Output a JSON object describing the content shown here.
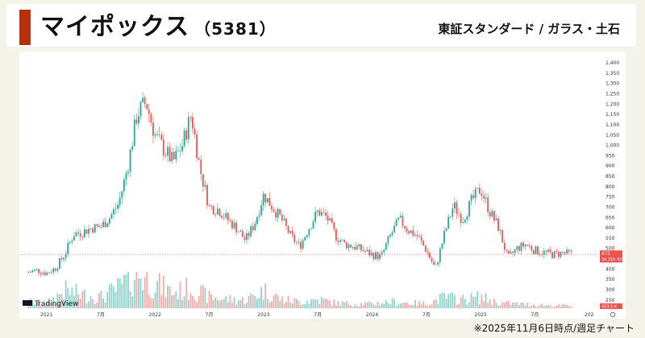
{
  "header": {
    "company_name": "マイポックス",
    "code": "（5381）",
    "market": "東証スタンダード / ガラス・土石"
  },
  "footnote": "※2025年11月6日時点/週足チャート",
  "chart_data": {
    "type": "candlestick",
    "title": "",
    "xlabel": "",
    "ylabel": "",
    "ylim": [
      210,
      1420
    ],
    "grid": false,
    "attribution": "TradingView",
    "colors": {
      "up": "#26a69a",
      "down": "#ef5350",
      "price_line": "#ef5350"
    },
    "y_ticks": [
      "1,400",
      "1,350",
      "1,300",
      "1,250",
      "1,200",
      "1,150",
      "1,100",
      "1,050",
      "1,000",
      "950",
      "900",
      "850",
      "800",
      "750",
      "700",
      "650",
      "600",
      "550",
      "500",
      "450",
      "400",
      "350",
      "300",
      "250"
    ],
    "y_tick_values": [
      1400,
      1350,
      1300,
      1250,
      1200,
      1150,
      1100,
      1050,
      1000,
      950,
      900,
      850,
      800,
      750,
      700,
      650,
      600,
      550,
      500,
      450,
      400,
      350,
      300,
      250
    ],
    "x_ticks": [
      "2021",
      "7月",
      "2022",
      "7月",
      "2023",
      "7月",
      "2024",
      "7月",
      "2025",
      "7月",
      "202"
    ],
    "x_tick_dates": [
      "2021-01",
      "2021-07",
      "2022-01",
      "2022-07",
      "2023-01",
      "2023-07",
      "2024-01",
      "2024-07",
      "2025-01",
      "2025-07",
      "2026-01"
    ],
    "x_range": [
      "2020-10",
      "2026-02"
    ],
    "last_price_label": "471",
    "countdown_label": "3d 21h 42",
    "volume_label": "453.5 K",
    "price_anchors": [
      [
        "2020-11",
        385
      ],
      [
        "2020-12",
        395
      ],
      [
        "2021-01",
        380
      ],
      [
        "2021-02",
        405
      ],
      [
        "2021-03",
        470
      ],
      [
        "2021-04",
        570
      ],
      [
        "2021-05",
        580
      ],
      [
        "2021-06",
        600
      ],
      [
        "2021-07",
        605
      ],
      [
        "2021-08",
        650
      ],
      [
        "2021-09",
        720
      ],
      [
        "2021-10",
        900
      ],
      [
        "2021-11",
        1150
      ],
      [
        "2021-12",
        1210
      ],
      [
        "2022-01",
        1050
      ],
      [
        "2022-02",
        980
      ],
      [
        "2022-03",
        920
      ],
      [
        "2022-04",
        1000
      ],
      [
        "2022-05",
        1150
      ],
      [
        "2022-06",
        880
      ],
      [
        "2022-07",
        700
      ],
      [
        "2022-08",
        690
      ],
      [
        "2022-09",
        640
      ],
      [
        "2022-10",
        600
      ],
      [
        "2022-11",
        540
      ],
      [
        "2022-12",
        620
      ],
      [
        "2023-01",
        760
      ],
      [
        "2023-02",
        700
      ],
      [
        "2023-03",
        640
      ],
      [
        "2023-04",
        560
      ],
      [
        "2023-05",
        510
      ],
      [
        "2023-06",
        600
      ],
      [
        "2023-07",
        680
      ],
      [
        "2023-08",
        650
      ],
      [
        "2023-09",
        560
      ],
      [
        "2023-10",
        520
      ],
      [
        "2023-11",
        510
      ],
      [
        "2023-12",
        490
      ],
      [
        "2024-01",
        470
      ],
      [
        "2024-02",
        460
      ],
      [
        "2024-03",
        560
      ],
      [
        "2024-04",
        640
      ],
      [
        "2024-05",
        590
      ],
      [
        "2024-06",
        560
      ],
      [
        "2024-07",
        490
      ],
      [
        "2024-08",
        400
      ],
      [
        "2024-09",
        570
      ],
      [
        "2024-10",
        710
      ],
      [
        "2024-11",
        640
      ],
      [
        "2024-12",
        730
      ],
      [
        "2025-01",
        790
      ],
      [
        "2025-02",
        680
      ],
      [
        "2025-03",
        600
      ],
      [
        "2025-04",
        450
      ],
      [
        "2025-05",
        500
      ],
      [
        "2025-06",
        520
      ],
      [
        "2025-07",
        490
      ],
      [
        "2025-08",
        480
      ],
      [
        "2025-09",
        470
      ],
      [
        "2025-10",
        478
      ],
      [
        "2025-11",
        471
      ]
    ],
    "volume_anchors": [
      [
        "2020-11",
        15
      ],
      [
        "2021-01",
        10
      ],
      [
        "2021-03",
        40
      ],
      [
        "2021-05",
        30
      ],
      [
        "2021-07",
        25
      ],
      [
        "2021-09",
        45
      ],
      [
        "2021-11",
        80
      ],
      [
        "2022-01",
        55
      ],
      [
        "2022-03",
        35
      ],
      [
        "2022-05",
        45
      ],
      [
        "2022-07",
        25
      ],
      [
        "2022-09",
        20
      ],
      [
        "2022-11",
        18
      ],
      [
        "2023-01",
        40
      ],
      [
        "2023-03",
        20
      ],
      [
        "2023-05",
        15
      ],
      [
        "2023-07",
        20
      ],
      [
        "2023-09",
        12
      ],
      [
        "2023-11",
        10
      ],
      [
        "2024-01",
        10
      ],
      [
        "2024-03",
        15
      ],
      [
        "2024-05",
        12
      ],
      [
        "2024-07",
        10
      ],
      [
        "2024-09",
        25
      ],
      [
        "2024-11",
        20
      ],
      [
        "2025-01",
        25
      ],
      [
        "2025-03",
        12
      ],
      [
        "2025-05",
        10
      ],
      [
        "2025-07",
        8
      ],
      [
        "2025-09",
        6
      ],
      [
        "2025-11",
        6
      ]
    ]
  }
}
